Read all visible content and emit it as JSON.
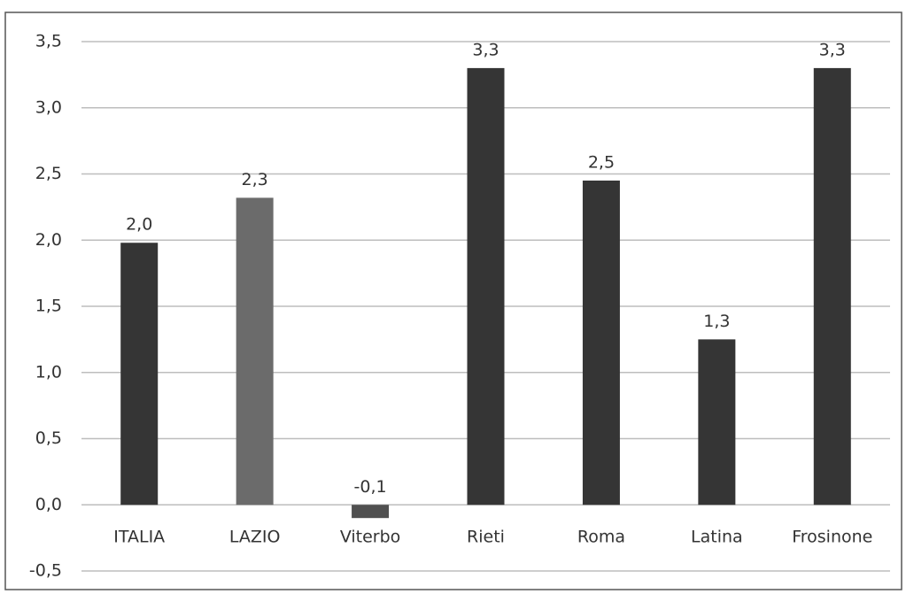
{
  "chart_data": {
    "type": "bar",
    "categories": [
      "ITALIA",
      "LAZIO",
      "Viterbo",
      "Rieti",
      "Roma",
      "Latina",
      "Frosinone"
    ],
    "values": [
      1.98,
      2.32,
      -0.1,
      3.3,
      2.45,
      1.25,
      3.3
    ],
    "value_labels": [
      "2,0",
      "2,3",
      "-0,1",
      "3,3",
      "2,5",
      "1,3",
      "3,3"
    ],
    "colors": [
      "#353535",
      "#6b6b6b",
      "#505050",
      "#353535",
      "#353535",
      "#353535",
      "#353535"
    ],
    "ylim": [
      -0.5,
      3.5
    ],
    "yticks": [
      {
        "value": -0.5,
        "label": "-0,5"
      },
      {
        "value": 0,
        "label": "0,0"
      },
      {
        "value": 0.5,
        "label": "0,5"
      },
      {
        "value": 1,
        "label": "1,0"
      },
      {
        "value": 1.5,
        "label": "1,5"
      },
      {
        "value": 2,
        "label": "2,0"
      },
      {
        "value": 2.5,
        "label": "2,5"
      },
      {
        "value": 3,
        "label": "3,0"
      },
      {
        "value": 3.5,
        "label": "3,5"
      }
    ],
    "grid": true
  }
}
